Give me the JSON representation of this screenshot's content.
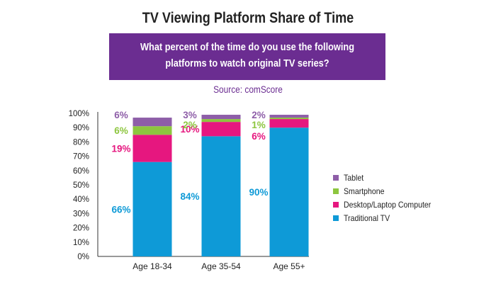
{
  "title": "TV Viewing Platform Share of Time",
  "question": {
    "line1": "What percent of the time do you use the following",
    "line2": "platforms to watch original TV series?"
  },
  "source": "Source: comScore",
  "colors": {
    "tablet": "#8e5ea8",
    "smartphone": "#8dc63f",
    "desktop": "#e6177f",
    "tv": "#0e9ad7",
    "title": "#222222",
    "banner": "#6b2d91"
  },
  "chart_data": {
    "type": "bar",
    "stacked": true,
    "categories": [
      "Age 18-34",
      "Age 35-54",
      "Age 55+"
    ],
    "series": [
      {
        "name": "Traditional TV",
        "values": [
          66,
          84,
          90
        ],
        "labels": [
          "66%",
          "84%",
          "90%"
        ],
        "color": "#0e9ad7"
      },
      {
        "name": "Desktop/Laptop Computer",
        "values": [
          19,
          10,
          6
        ],
        "labels": [
          "19%",
          "10%",
          "6%"
        ],
        "color": "#e6177f"
      },
      {
        "name": "Smartphone",
        "values": [
          6,
          2,
          1
        ],
        "labels": [
          "6%",
          "2%",
          "1%"
        ],
        "color": "#8dc63f"
      },
      {
        "name": "Tablet",
        "values": [
          6,
          3,
          2
        ],
        "labels": [
          "6%",
          "3%",
          "2%"
        ],
        "color": "#8e5ea8"
      }
    ],
    "yticks": [
      "0%",
      "10%",
      "20%",
      "30%",
      "40%",
      "50%",
      "60%",
      "70%",
      "80%",
      "90%",
      "100%"
    ],
    "ylim": [
      0,
      100
    ],
    "grid": false,
    "legend": {
      "placement": "right",
      "items": [
        "Tablet",
        "Smartphone",
        "Desktop/Laptop Computer",
        "Traditional TV"
      ]
    }
  }
}
